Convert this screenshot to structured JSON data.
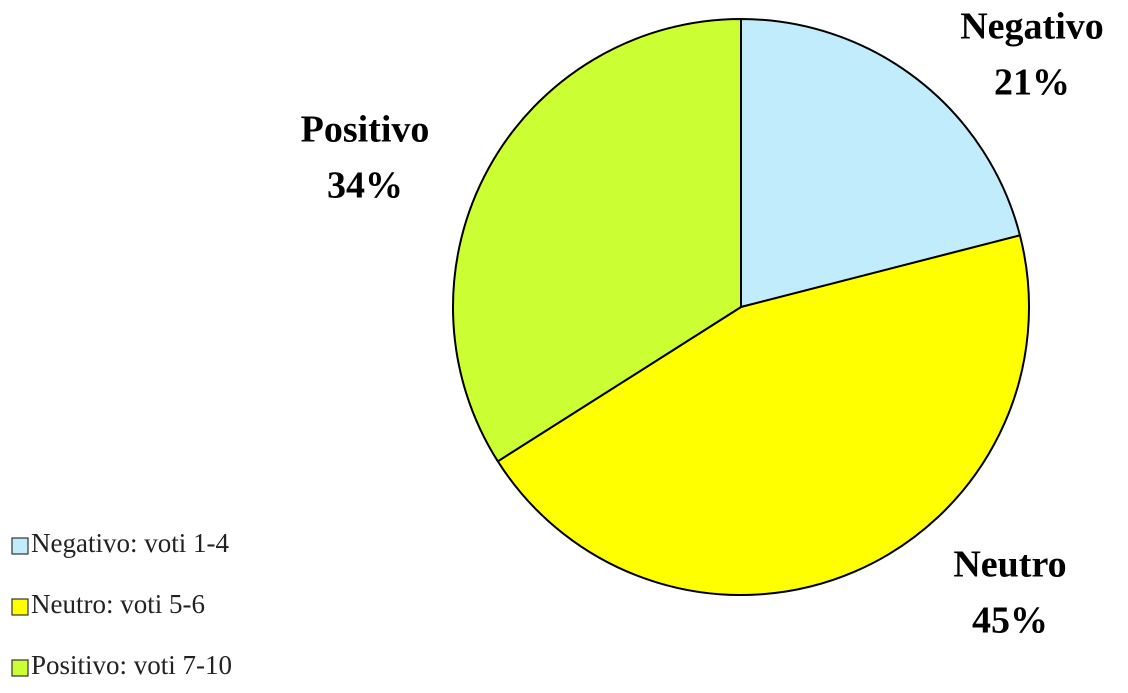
{
  "chart_data": {
    "type": "pie",
    "categories": [
      "Negativo",
      "Neutro",
      "Positivo"
    ],
    "values": [
      21,
      45,
      34
    ],
    "value_labels": [
      "21%",
      "45%",
      "34%"
    ],
    "colors": [
      "#c0ecfc",
      "#ffff00",
      "#ccff33"
    ],
    "legend": [
      "Negativo: voti 1-4",
      "Neutro: voti 5-6",
      "Positivo: voti 7-10"
    ],
    "legend_position": "bottom-left"
  }
}
